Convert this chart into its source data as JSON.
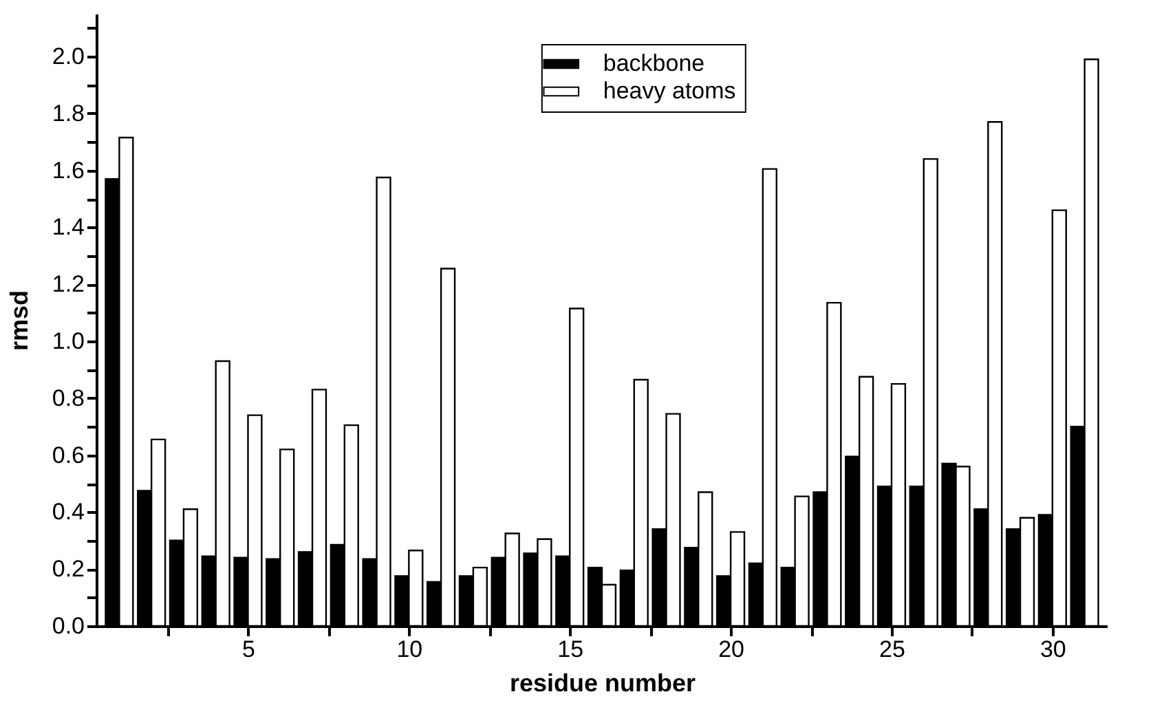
{
  "chart_data": {
    "type": "bar",
    "xlabel": "residue number",
    "ylabel": "rmsd",
    "x": [
      1,
      2,
      3,
      4,
      5,
      6,
      7,
      8,
      9,
      10,
      11,
      12,
      13,
      14,
      15,
      16,
      17,
      18,
      19,
      20,
      21,
      22,
      23,
      24,
      25,
      26,
      27,
      28,
      29,
      30,
      31
    ],
    "series": [
      {
        "name": "backbone",
        "color": "#000000",
        "values": [
          1.57,
          0.475,
          0.3,
          0.245,
          0.24,
          0.235,
          0.26,
          0.285,
          0.235,
          0.175,
          0.155,
          0.175,
          0.24,
          0.255,
          0.245,
          0.205,
          0.195,
          0.34,
          0.275,
          0.175,
          0.22,
          0.205,
          0.47,
          0.595,
          0.49,
          0.49,
          0.57,
          0.41,
          0.34,
          0.39,
          0.7
        ]
      },
      {
        "name": "heavy atoms",
        "color": "#ffffff",
        "values": [
          1.715,
          0.655,
          0.41,
          0.93,
          0.74,
          0.62,
          0.83,
          0.705,
          1.575,
          0.265,
          1.255,
          0.205,
          0.325,
          0.305,
          1.115,
          0.145,
          0.865,
          0.745,
          0.47,
          0.33,
          1.605,
          0.455,
          1.135,
          0.875,
          0.85,
          1.64,
          0.56,
          1.77,
          0.38,
          1.46,
          1.99
        ]
      }
    ],
    "xlim": [
      0.5,
      31.5
    ],
    "xticks": [
      {
        "value": 2.5,
        "label": null
      },
      5,
      {
        "value": 7.5,
        "label": null
      },
      10,
      {
        "value": 12.5,
        "label": null
      },
      15,
      {
        "value": 17.5,
        "label": null
      },
      20,
      {
        "value": 22.5,
        "label": null
      },
      25,
      {
        "value": 27.5,
        "label": null
      },
      30
    ],
    "ylim": [
      0,
      2.15
    ],
    "yticks": [
      {
        "value": 0,
        "label": "0.0"
      },
      {
        "value": 0.1,
        "label": null
      },
      0.2,
      {
        "value": 0.3,
        "label": null
      },
      0.4,
      {
        "value": 0.5,
        "label": null
      },
      0.6,
      {
        "value": 0.7,
        "label": null
      },
      0.8,
      {
        "value": 0.9,
        "label": null
      },
      {
        "value": 1,
        "label": "1.0"
      },
      {
        "value": 1.1,
        "label": null
      },
      1.2,
      {
        "value": 1.3,
        "label": null
      },
      1.4,
      {
        "value": 1.5,
        "label": null
      },
      1.6,
      {
        "value": 1.7,
        "label": null
      },
      1.8,
      {
        "value": 1.9,
        "label": null
      },
      {
        "value": 2,
        "label": "2.0"
      },
      {
        "value": 2.1,
        "label": null
      }
    ],
    "legend": "top",
    "grid": false
  }
}
